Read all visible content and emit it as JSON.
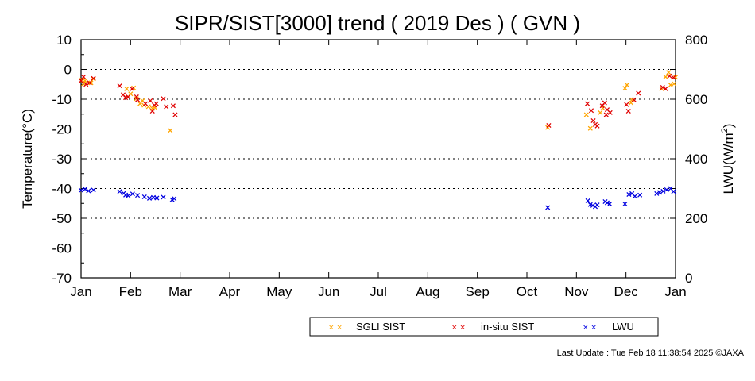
{
  "chart_data": {
    "type": "scatter",
    "title": "SIPR/SIST[3000] trend ( 2019 Des ) ( GVN )",
    "ylabel": "Temperature(°C)",
    "y2label_base": "LWU(W/m",
    "y2label_sup": "2",
    "y2label_end": ")",
    "ylim": [
      -70,
      10
    ],
    "y2lim": [
      0,
      800
    ],
    "yticks": [
      "10",
      "0",
      "-10",
      "-20",
      "-30",
      "-40",
      "-50",
      "-60",
      "-70"
    ],
    "y2ticks": [
      "800",
      "600",
      "400",
      "200",
      "0"
    ],
    "xlim": [
      0,
      12
    ],
    "xticks": [
      "Jan",
      "Feb",
      "Mar",
      "Apr",
      "May",
      "Jun",
      "Jul",
      "Aug",
      "Sep",
      "Oct",
      "Nov",
      "Dec",
      "Jan"
    ],
    "grid_y": [
      0,
      -10,
      -20,
      -30,
      -40,
      -50,
      -60
    ],
    "legend": {
      "placement": "bottom-center"
    },
    "series": [
      {
        "name": "SGLI SIST",
        "color": "#ffa500",
        "axis": "left",
        "x": [
          0.02,
          0.05,
          0.08,
          0.2,
          0.25,
          0.92,
          1.0,
          1.06,
          1.12,
          1.19,
          1.24,
          1.27,
          1.36,
          1.44,
          1.49,
          1.8,
          9.42,
          10.2,
          10.28,
          10.48,
          10.53,
          10.98,
          11.02,
          11.1,
          11.12,
          11.72,
          11.8,
          11.86,
          11.9,
          11.97,
          12.0
        ],
        "y": [
          -3.5,
          -4.8,
          -3.8,
          -4.5,
          -3.2,
          -6.5,
          -8.2,
          -6.2,
          -9.8,
          -11.5,
          -10.5,
          -12,
          -12.5,
          -13.1,
          -12.8,
          -20.5,
          -19.5,
          -15.2,
          -19.8,
          -14.5,
          -13,
          -6.3,
          -5.2,
          -11.2,
          -10.2,
          -6.5,
          -2.5,
          -1,
          -5.2,
          -4.8,
          -2.6
        ]
      },
      {
        "name": "in-situ SIST",
        "color": "#e00000",
        "axis": "left",
        "x": [
          0.0,
          0.05,
          0.1,
          0.17,
          0.25,
          0.78,
          0.85,
          0.9,
          0.95,
          1.03,
          1.12,
          1.14,
          1.3,
          1.4,
          1.44,
          1.48,
          1.52,
          1.66,
          1.72,
          1.86,
          1.9,
          9.44,
          10.22,
          10.3,
          10.34,
          10.38,
          10.42,
          10.52,
          10.57,
          10.6,
          10.62,
          10.68,
          11.01,
          11.05,
          11.16,
          11.25,
          11.74,
          11.8,
          11.88,
          11.96
        ],
        "y": [
          -3.8,
          -2.5,
          -5,
          -4.5,
          -3,
          -5.5,
          -8.5,
          -9.5,
          -9.2,
          -6.5,
          -9.2,
          -10.2,
          -11.5,
          -10.5,
          -14,
          -12,
          -11.5,
          -9.8,
          -12.5,
          -12.2,
          -15.2,
          -18.8,
          -11.5,
          -13.8,
          -17.2,
          -18.5,
          -19,
          -12.2,
          -11.2,
          -15.2,
          -13.5,
          -14.5,
          -11.8,
          -14,
          -10.2,
          -8,
          -6,
          -6.5,
          -2.2,
          -2.7
        ]
      },
      {
        "name": "LWU",
        "color": "#0000e0",
        "axis": "right",
        "x": [
          0.0,
          0.08,
          0.15,
          0.25,
          0.78,
          0.86,
          0.9,
          0.95,
          1.04,
          1.14,
          1.28,
          1.38,
          1.46,
          1.53,
          1.66,
          1.84,
          1.88,
          9.42,
          10.23,
          10.28,
          10.33,
          10.38,
          10.42,
          10.58,
          10.62,
          10.67,
          10.98,
          11.06,
          11.12,
          11.18,
          11.28,
          11.62,
          11.68,
          11.75,
          11.82,
          11.9,
          11.96
        ],
        "y": [
          294,
          298,
          292,
          295,
          290,
          284,
          278,
          276,
          282,
          277,
          272,
          267,
          270,
          268,
          271,
          262,
          266,
          236,
          259,
          246,
          243,
          239,
          245,
          256,
          252,
          248,
          248,
          280,
          283,
          274,
          278,
          283,
          287,
          291,
          296,
          300,
          290
        ]
      }
    ],
    "footer": "Last Update : Tue Feb 18 11:38:54 2025  ©JAXA"
  }
}
